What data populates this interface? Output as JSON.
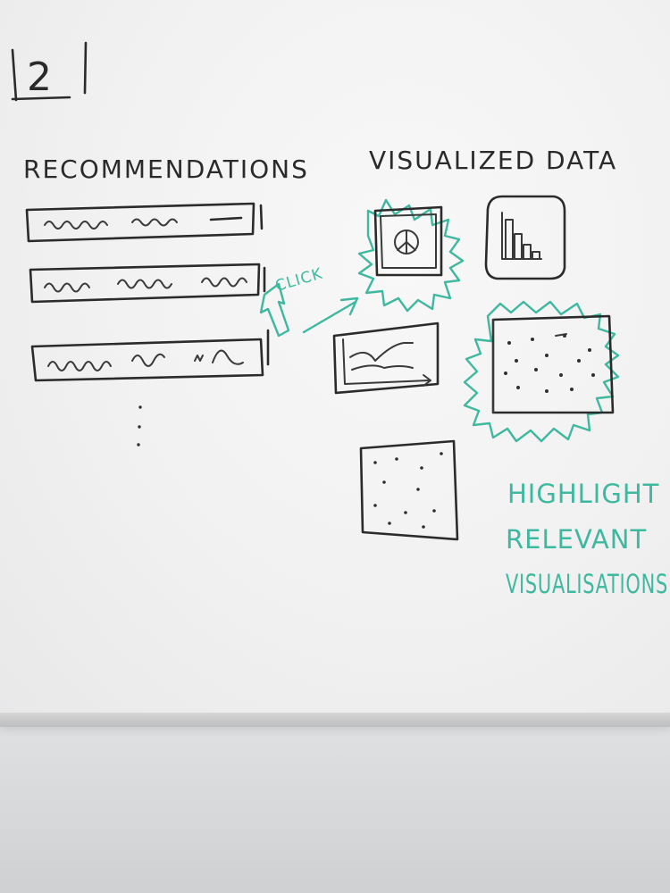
{
  "board": {
    "sketch_number": "2",
    "left_heading": "RECOMMENDATIONS",
    "right_heading": "VISUALIZED DATA",
    "click_label": "CLICK",
    "highlight_note": [
      "HIGHLIGHT",
      "RELEVANT",
      "VISUALISATIONS"
    ]
  },
  "colors": {
    "black_marker": "#2b2b2b",
    "teal_marker": "#3fb8a0",
    "board": "#f3f3f3"
  },
  "icons": [
    "pie-chart-icon",
    "bar-chart-icon",
    "line-chart-icon",
    "scatter-plot-icon",
    "arrow-icon"
  ]
}
